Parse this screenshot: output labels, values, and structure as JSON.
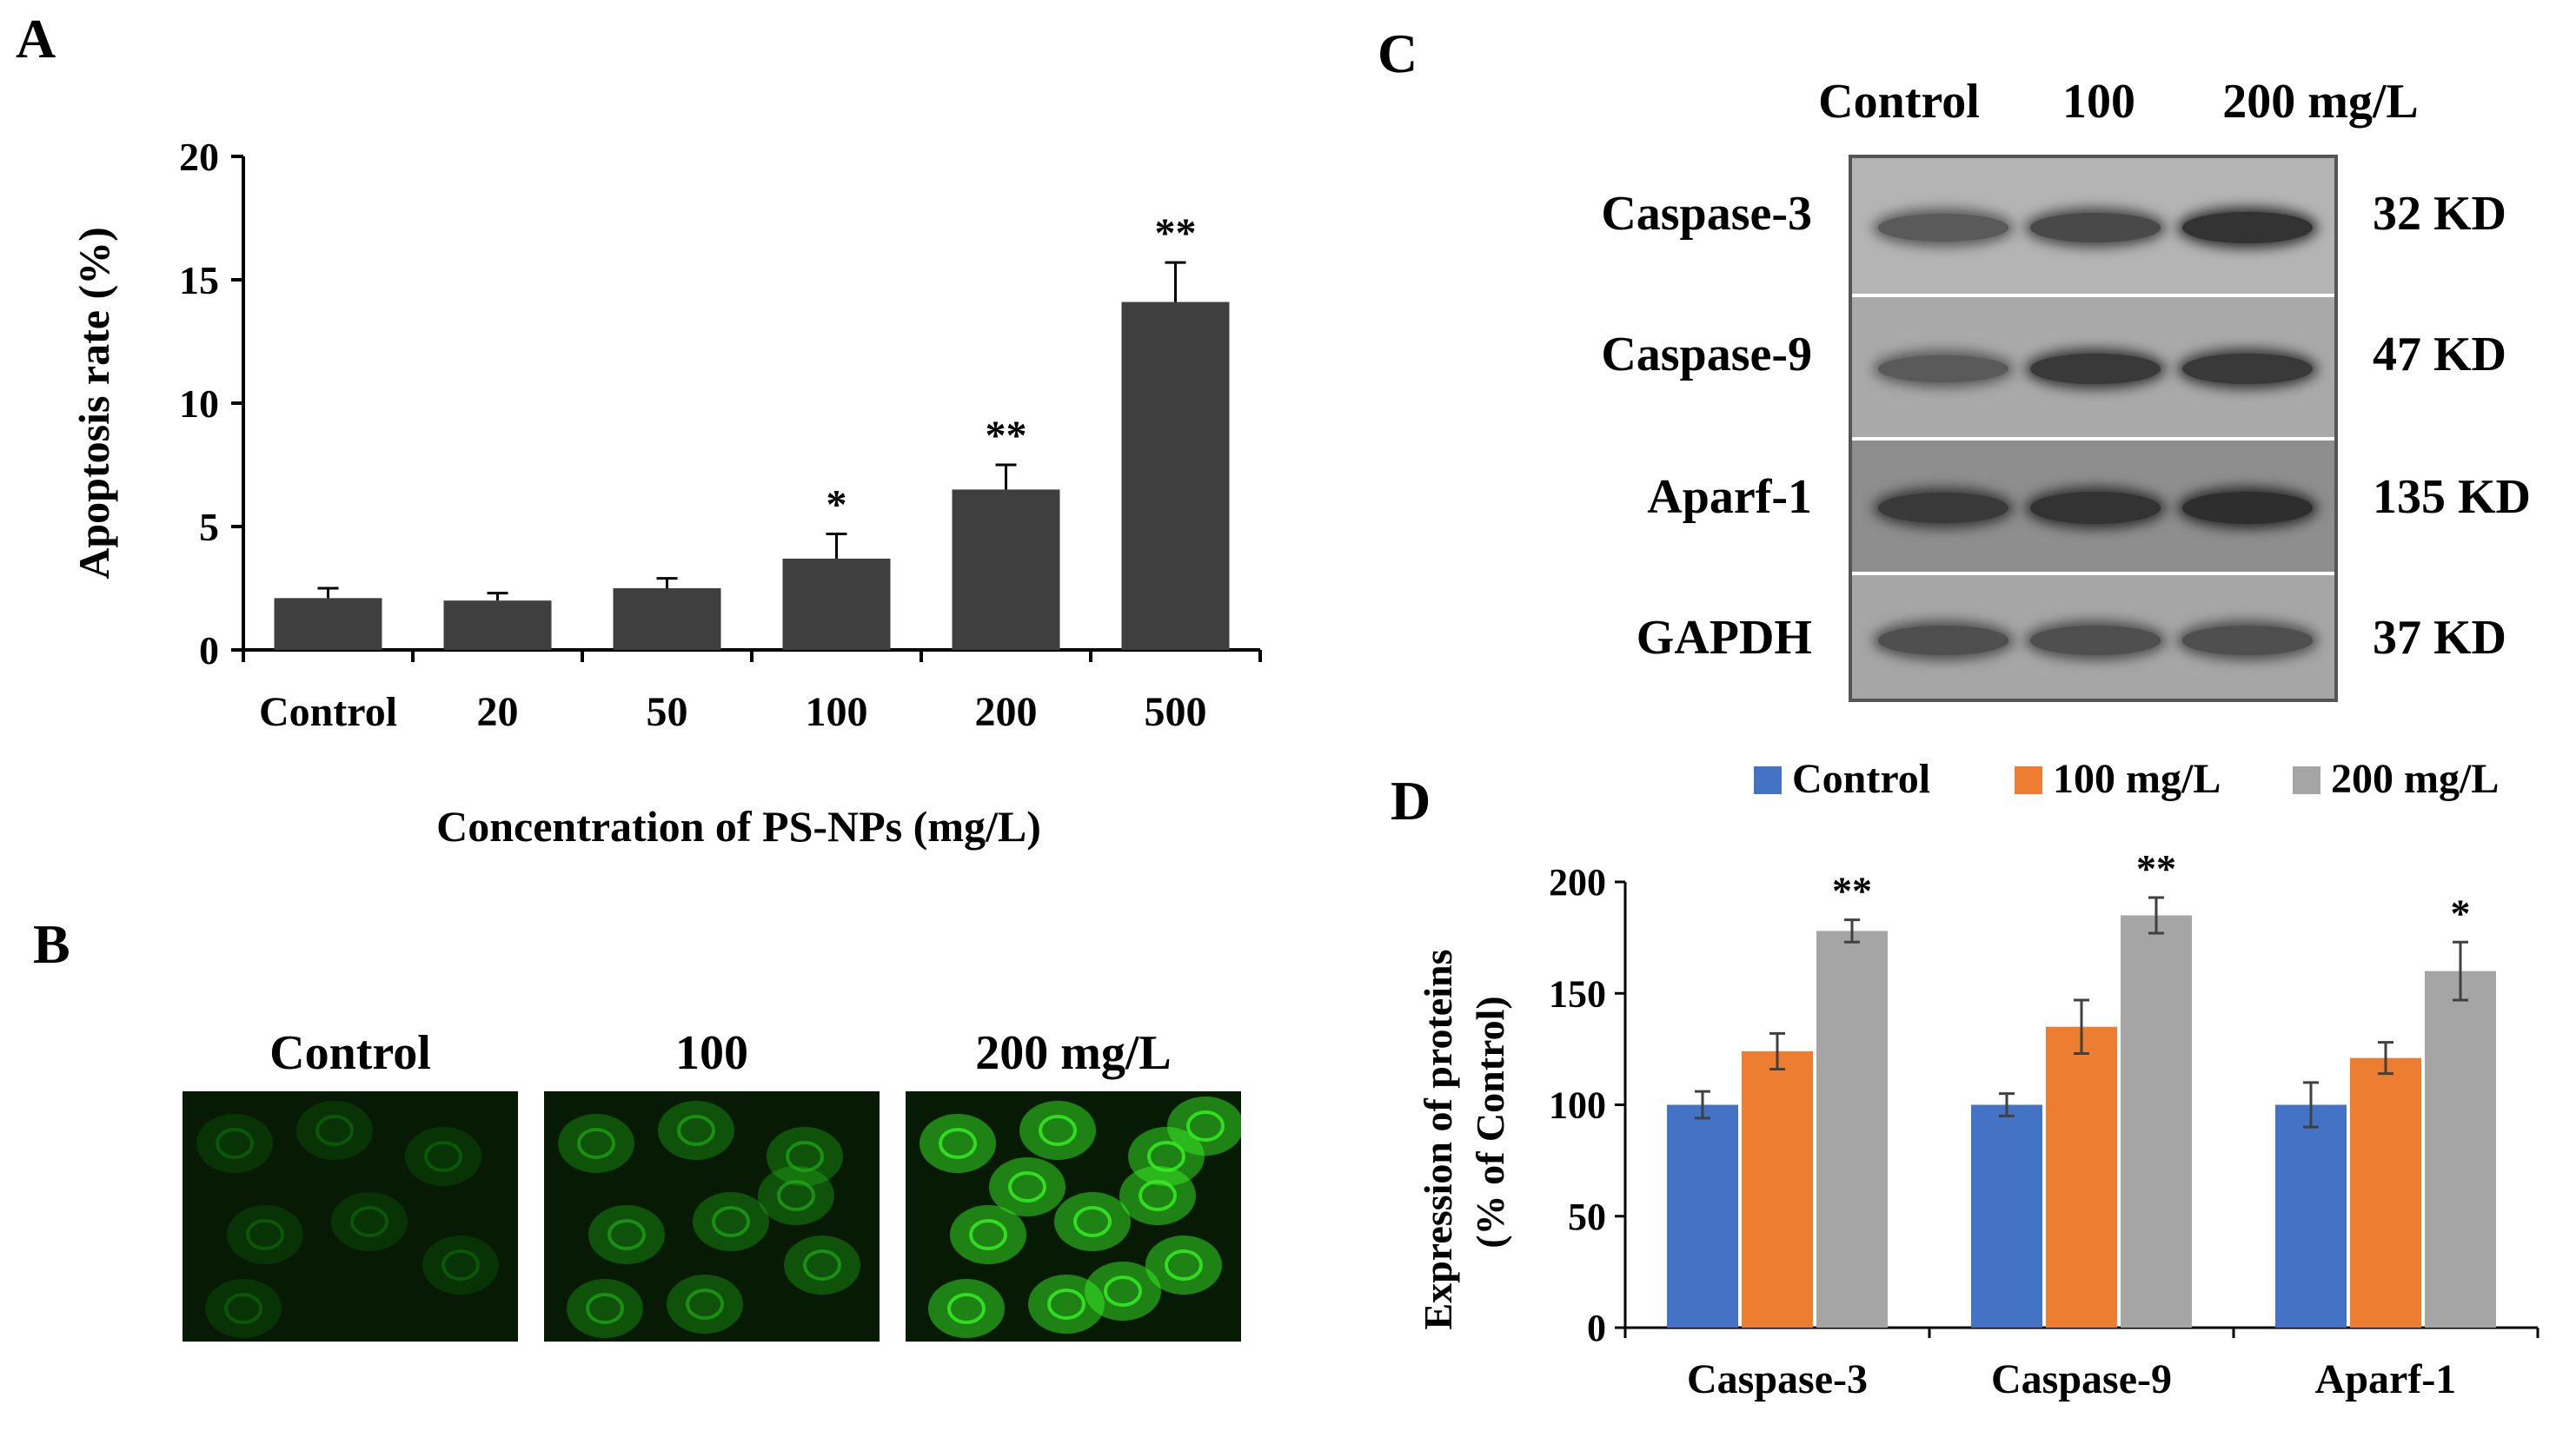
{
  "panels": {
    "a": "A",
    "b": "B",
    "c": "C",
    "d": "D"
  },
  "chart_data": [
    {
      "panel": "A",
      "type": "bar",
      "title": "",
      "xlabel": "Concentration of PS-NPs (mg/L)",
      "ylabel": "Apoptosis rate (%)",
      "categories": [
        "Control",
        "20",
        "50",
        "100",
        "200",
        "500"
      ],
      "values": [
        2.1,
        2.0,
        2.5,
        3.7,
        6.5,
        14.1
      ],
      "errors": [
        0.4,
        0.3,
        0.4,
        1.0,
        1.0,
        1.6
      ],
      "significance": [
        "",
        "",
        "",
        "*",
        "**",
        "**"
      ],
      "ylim": [
        0,
        20
      ],
      "yticks": [
        "0",
        "5",
        "10",
        "15",
        "20"
      ],
      "bar_color": "#3f3f3f"
    },
    {
      "panel": "D",
      "type": "bar",
      "title": "",
      "xlabel": "",
      "ylabel": "Expression of proteins",
      "ylabel2": "(% of Control)",
      "categories": [
        "Caspase-3",
        "Caspase-9",
        "Aparf-1"
      ],
      "series": [
        {
          "name": "Control",
          "color": "#4472c4",
          "values": [
            100,
            100,
            100
          ],
          "errors": [
            6,
            5,
            10
          ]
        },
        {
          "name": "100 mg/L",
          "color": "#ed7d31",
          "values": [
            124,
            135,
            121
          ],
          "errors": [
            8,
            12,
            7
          ]
        },
        {
          "name": "200 mg/L",
          "color": "#a5a5a5",
          "values": [
            178,
            185,
            160
          ],
          "errors": [
            5,
            8,
            13
          ]
        }
      ],
      "significance": [
        "**",
        "**",
        "*"
      ],
      "ylim": [
        0,
        200
      ],
      "yticks": [
        "0",
        "50",
        "100",
        "150",
        "200"
      ],
      "legend_position": "top"
    }
  ],
  "panel_b": {
    "labels": [
      "Control",
      "100",
      "200 mg/L"
    ],
    "intensity": [
      0.25,
      0.55,
      0.9
    ]
  },
  "panel_c": {
    "lane_labels": [
      "Control",
      "100",
      "200 mg/L"
    ],
    "rows": [
      {
        "protein": "Caspase-3",
        "kd": "32 KD",
        "band_strength": [
          0.55,
          0.7,
          0.9
        ]
      },
      {
        "protein": "Caspase-9",
        "kd": "47 KD",
        "band_strength": [
          0.55,
          0.85,
          0.85
        ]
      },
      {
        "protein": "Aparf-1",
        "kd": "135 KD",
        "band_strength": [
          0.85,
          0.9,
          0.95
        ]
      },
      {
        "protein": "GAPDH",
        "kd": "37 KD",
        "band_strength": [
          0.65,
          0.65,
          0.65
        ]
      }
    ]
  }
}
